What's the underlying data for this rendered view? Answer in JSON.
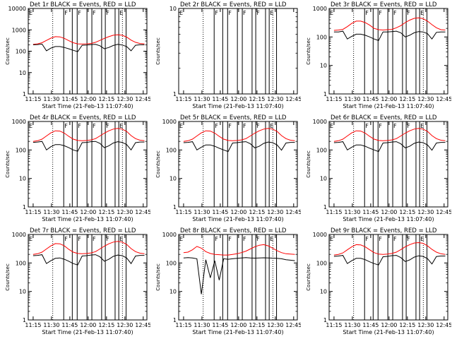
{
  "chart_data": [
    {
      "type": "line",
      "title": "Det 1r BLACK = Events, RED = LLD",
      "xlabel": "Start Time (21-Feb-13 11:07:40)",
      "ylabel": "Counts/sec",
      "ylim": [
        1,
        10000
      ],
      "yscale": "log",
      "yticks": [
        "1",
        "10",
        "100",
        "1000",
        "10000"
      ],
      "xticks": [
        "11:15",
        "11:30",
        "11:45",
        "12:00",
        "12:15",
        "12:30",
        "12:45"
      ],
      "bands": [
        {
          "start": "11:40",
          "end": "11:47",
          "label": "F"
        },
        {
          "start": "11:51",
          "end": "11:59",
          "label": "F"
        },
        {
          "start": "12:03",
          "end": "12:11",
          "label": "F"
        },
        {
          "start": "12:14",
          "end": "12:22",
          "label": "F"
        },
        {
          "start": "12:25",
          "end": "12:31",
          "label": "E"
        }
      ],
      "markers": [
        "11:31",
        "12:28"
      ],
      "start_label": "E",
      "series": [
        {
          "color": "#ff0000",
          "values": [
            210,
            220,
            250,
            320,
            410,
            480,
            470,
            400,
            310,
            250,
            220,
            215,
            220,
            230,
            260,
            320,
            400,
            480,
            560,
            590,
            560,
            460,
            330,
            260,
            230,
            220
          ]
        },
        {
          "color": "#000000",
          "values": [
            200,
            205,
            215,
            105,
            140,
            165,
            165,
            150,
            130,
            110,
            95,
            190,
            195,
            205,
            210,
            180,
            130,
            150,
            185,
            210,
            195,
            165,
            105,
            190,
            200,
            200
          ]
        }
      ]
    },
    {
      "type": "line",
      "title": "Det 2r BLACK = Events, RED = LLD",
      "xlabel": "Start Time (21-Feb-13 11:07:40)",
      "ylabel": "Counts/sec",
      "ylim": [
        1,
        10
      ],
      "yscale": "log",
      "yticks": [
        "1",
        "10"
      ],
      "xticks": [
        "11:15",
        "11:30",
        "11:45",
        "12:00",
        "12:15",
        "12:30",
        "12:45"
      ],
      "bands": [
        {
          "start": "11:40",
          "end": "11:47",
          "label": "F"
        },
        {
          "start": "11:51",
          "end": "11:59",
          "label": "F"
        },
        {
          "start": "12:03",
          "end": "12:11",
          "label": "F"
        },
        {
          "start": "12:14",
          "end": "12:22",
          "label": "F"
        },
        {
          "start": "12:25",
          "end": "12:31",
          "label": "E"
        }
      ],
      "markers": [
        "11:31",
        "12:28"
      ],
      "start_label": "E",
      "series": []
    },
    {
      "type": "line",
      "title": "Det 3r BLACK = Events, RED = LLD",
      "xlabel": "Start Time (21-Feb-13 11:07:40)",
      "ylabel": "Counts/sec",
      "ylim": [
        1,
        1000
      ],
      "yscale": "log",
      "yticks": [
        "1",
        "10",
        "100",
        "1000"
      ],
      "xticks": [
        "11:15",
        "11:30",
        "11:45",
        "12:00",
        "12:15",
        "12:30",
        "12:45"
      ],
      "bands": [
        {
          "start": "11:40",
          "end": "11:47",
          "label": "F"
        },
        {
          "start": "11:51",
          "end": "11:59",
          "label": "F"
        },
        {
          "start": "12:03",
          "end": "12:11",
          "label": "F"
        },
        {
          "start": "12:14",
          "end": "12:22",
          "label": "F"
        },
        {
          "start": "12:25",
          "end": "12:31",
          "label": "E"
        }
      ],
      "markers": [
        "11:31",
        "12:28"
      ],
      "start_label": "E",
      "series": [
        {
          "color": "#ff0000",
          "values": [
            170,
            175,
            185,
            230,
            300,
            360,
            360,
            320,
            260,
            200,
            180,
            175,
            180,
            185,
            210,
            250,
            320,
            390,
            450,
            470,
            440,
            360,
            270,
            210,
            180,
            175
          ]
        },
        {
          "color": "#000000",
          "values": [
            150,
            150,
            160,
            85,
            105,
            125,
            125,
            115,
            100,
            85,
            75,
            150,
            150,
            155,
            160,
            140,
            100,
            115,
            140,
            155,
            150,
            130,
            85,
            145,
            150,
            150
          ]
        }
      ]
    },
    {
      "type": "line",
      "title": "Det 4r BLACK = Events, RED = LLD",
      "xlabel": "Start Time (21-Feb-13 11:07:40)",
      "ylabel": "Counts/sec",
      "ylim": [
        1,
        1000
      ],
      "yscale": "log",
      "yticks": [
        "1",
        "10",
        "100",
        "1000"
      ],
      "xticks": [
        "11:15",
        "11:30",
        "11:45",
        "12:00",
        "12:15",
        "12:30",
        "12:45"
      ],
      "bands": [
        {
          "start": "11:40",
          "end": "11:47",
          "label": "F"
        },
        {
          "start": "11:51",
          "end": "11:59",
          "label": "F"
        },
        {
          "start": "12:03",
          "end": "12:11",
          "label": "F"
        },
        {
          "start": "12:14",
          "end": "12:22",
          "label": "F"
        },
        {
          "start": "12:25",
          "end": "12:31",
          "label": "E"
        }
      ],
      "markers": [
        "11:31",
        "12:28"
      ],
      "start_label": "E",
      "series": [
        {
          "color": "#ff0000",
          "values": [
            200,
            210,
            240,
            310,
            400,
            470,
            460,
            390,
            300,
            240,
            215,
            210,
            215,
            225,
            250,
            310,
            390,
            470,
            540,
            570,
            540,
            450,
            320,
            250,
            220,
            210
          ]
        },
        {
          "color": "#000000",
          "values": [
            185,
            190,
            200,
            100,
            130,
            155,
            155,
            140,
            120,
            100,
            90,
            180,
            185,
            195,
            200,
            170,
            120,
            140,
            175,
            195,
            185,
            155,
            100,
            180,
            190,
            190
          ]
        }
      ]
    },
    {
      "type": "line",
      "title": "Det 5r BLACK = Events, RED = LLD",
      "xlabel": "Start Time (21-Feb-13 11:07:40)",
      "ylabel": "Counts/sec",
      "ylim": [
        1,
        1000
      ],
      "yscale": "log",
      "yticks": [
        "1",
        "10",
        "100",
        "1000"
      ],
      "xticks": [
        "11:15",
        "11:30",
        "11:45",
        "12:00",
        "12:15",
        "12:30",
        "12:45"
      ],
      "bands": [
        {
          "start": "11:40",
          "end": "11:47",
          "label": "F"
        },
        {
          "start": "11:51",
          "end": "11:59",
          "label": "F"
        },
        {
          "start": "12:03",
          "end": "12:11",
          "label": "F"
        },
        {
          "start": "12:14",
          "end": "12:22",
          "label": "F"
        },
        {
          "start": "12:25",
          "end": "12:31",
          "label": "E"
        }
      ],
      "markers": [
        "11:31",
        "12:28"
      ],
      "start_label": "E",
      "series": [
        {
          "color": "#ff0000",
          "values": [
            200,
            210,
            240,
            310,
            400,
            470,
            460,
            390,
            300,
            240,
            215,
            210,
            215,
            225,
            250,
            310,
            390,
            470,
            540,
            570,
            540,
            450,
            320,
            250,
            220,
            210
          ]
        },
        {
          "color": "#000000",
          "values": [
            180,
            185,
            195,
            100,
            125,
            150,
            150,
            135,
            115,
            100,
            88,
            175,
            180,
            190,
            195,
            165,
            118,
            135,
            170,
            190,
            180,
            150,
            98,
            175,
            185,
            185
          ]
        }
      ]
    },
    {
      "type": "line",
      "title": "Det 6r BLACK = Events, RED = LLD",
      "xlabel": "Start Time (21-Feb-13 11:07:40)",
      "ylabel": "Counts/sec",
      "ylim": [
        1,
        1000
      ],
      "yscale": "log",
      "yticks": [
        "1",
        "10",
        "100",
        "1000"
      ],
      "xticks": [
        "11:15",
        "11:30",
        "11:45",
        "12:00",
        "12:15",
        "12:30",
        "12:45"
      ],
      "bands": [
        {
          "start": "11:40",
          "end": "11:47",
          "label": "F"
        },
        {
          "start": "11:51",
          "end": "11:59",
          "label": "F"
        },
        {
          "start": "12:03",
          "end": "12:11",
          "label": "F"
        },
        {
          "start": "12:14",
          "end": "12:22",
          "label": "F"
        },
        {
          "start": "12:25",
          "end": "12:31",
          "label": "E"
        }
      ],
      "markers": [
        "11:31",
        "12:28"
      ],
      "start_label": "E",
      "series": [
        {
          "color": "#ff0000",
          "values": [
            200,
            210,
            240,
            310,
            400,
            470,
            460,
            390,
            300,
            240,
            215,
            210,
            215,
            225,
            250,
            310,
            390,
            470,
            540,
            570,
            540,
            450,
            320,
            250,
            220,
            210
          ]
        },
        {
          "color": "#000000",
          "values": [
            180,
            185,
            195,
            100,
            125,
            150,
            150,
            135,
            115,
            100,
            88,
            175,
            180,
            190,
            195,
            165,
            118,
            135,
            170,
            190,
            180,
            150,
            98,
            175,
            185,
            185
          ]
        }
      ]
    },
    {
      "type": "line",
      "title": "Det 7r BLACK = Events, RED = LLD",
      "xlabel": "Start Time (21-Feb-13 11:07:40)",
      "ylabel": "Counts/sec",
      "ylim": [
        1,
        1000
      ],
      "yscale": "log",
      "yticks": [
        "1",
        "10",
        "100",
        "1000"
      ],
      "xticks": [
        "11:15",
        "11:30",
        "11:45",
        "12:00",
        "12:15",
        "12:30",
        "12:45"
      ],
      "bands": [
        {
          "start": "11:40",
          "end": "11:47",
          "label": "F"
        },
        {
          "start": "11:51",
          "end": "11:59",
          "label": "F"
        },
        {
          "start": "12:03",
          "end": "12:11",
          "label": "F"
        },
        {
          "start": "12:14",
          "end": "12:22",
          "label": "F"
        },
        {
          "start": "12:25",
          "end": "12:31",
          "label": "E"
        }
      ],
      "markers": [
        "11:31",
        "12:28"
      ],
      "start_label": "E",
      "series": [
        {
          "color": "#ff0000",
          "values": [
            200,
            210,
            240,
            310,
            400,
            480,
            470,
            400,
            300,
            240,
            215,
            210,
            215,
            225,
            250,
            310,
            390,
            470,
            540,
            570,
            540,
            450,
            320,
            250,
            220,
            210
          ]
        },
        {
          "color": "#000000",
          "values": [
            180,
            185,
            195,
            95,
            120,
            145,
            150,
            135,
            115,
            95,
            85,
            175,
            180,
            190,
            195,
            165,
            115,
            135,
            170,
            190,
            180,
            150,
            95,
            175,
            185,
            185
          ]
        }
      ]
    },
    {
      "type": "line",
      "title": "Det 8r BLACK = Events, RED = LLD",
      "xlabel": "Start Time (21-Feb-13 11:07:40)",
      "ylabel": "Counts/sec",
      "ylim": [
        1,
        1000
      ],
      "yscale": "log",
      "yticks": [
        "1",
        "10",
        "100",
        "1000"
      ],
      "xticks": [
        "11:15",
        "11:30",
        "11:45",
        "12:00",
        "12:15",
        "12:30",
        "12:45"
      ],
      "bands": [
        {
          "start": "11:40",
          "end": "11:47",
          "label": "F"
        },
        {
          "start": "11:51",
          "end": "11:59",
          "label": "F"
        },
        {
          "start": "12:03",
          "end": "12:11",
          "label": "F"
        },
        {
          "start": "12:14",
          "end": "12:22",
          "label": "F"
        },
        {
          "start": "12:25",
          "end": "12:31",
          "label": "E"
        }
      ],
      "markers": [
        "11:31",
        "12:28"
      ],
      "start_label": "E",
      "series": [
        {
          "color": "#ff0000",
          "values": [
            230,
            240,
            290,
            380,
            330,
            250,
            215,
            200,
            195,
            190,
            190,
            200,
            210,
            230,
            260,
            310,
            370,
            420,
            440,
            400,
            330,
            270,
            230,
            210,
            205,
            200
          ]
        },
        {
          "color": "#000000",
          "values": [
            150,
            155,
            150,
            140,
            8,
            130,
            30,
            120,
            25,
            140,
            135,
            140,
            145,
            150,
            155,
            150,
            148,
            150,
            152,
            150,
            148,
            145,
            140,
            130,
            125,
            120
          ]
        }
      ]
    },
    {
      "type": "line",
      "title": "Det 9r BLACK = Events, RED = LLD",
      "xlabel": "Start Time (21-Feb-13 11:07:40)",
      "ylabel": "Counts/sec",
      "ylim": [
        1,
        1000
      ],
      "yscale": "log",
      "yticks": [
        "1",
        "10",
        "100",
        "1000"
      ],
      "xticks": [
        "11:15",
        "11:30",
        "11:45",
        "12:00",
        "12:15",
        "12:30",
        "12:45"
      ],
      "bands": [
        {
          "start": "11:40",
          "end": "11:47",
          "label": "F"
        },
        {
          "start": "11:51",
          "end": "11:59",
          "label": "F"
        },
        {
          "start": "12:03",
          "end": "12:11",
          "label": "F"
        },
        {
          "start": "12:14",
          "end": "12:22",
          "label": "F"
        },
        {
          "start": "12:25",
          "end": "12:31",
          "label": "E"
        }
      ],
      "markers": [
        "11:31",
        "12:28"
      ],
      "start_label": "E",
      "series": [
        {
          "color": "#ff0000",
          "values": [
            190,
            200,
            225,
            290,
            370,
            440,
            430,
            370,
            290,
            230,
            205,
            200,
            205,
            215,
            240,
            295,
            370,
            440,
            500,
            520,
            490,
            400,
            300,
            240,
            210,
            200
          ]
        },
        {
          "color": "#000000",
          "values": [
            170,
            175,
            185,
            95,
            120,
            145,
            145,
            130,
            110,
            95,
            85,
            165,
            170,
            180,
            185,
            155,
            112,
            128,
            160,
            178,
            170,
            142,
            92,
            168,
            175,
            175
          ]
        }
      ]
    }
  ]
}
